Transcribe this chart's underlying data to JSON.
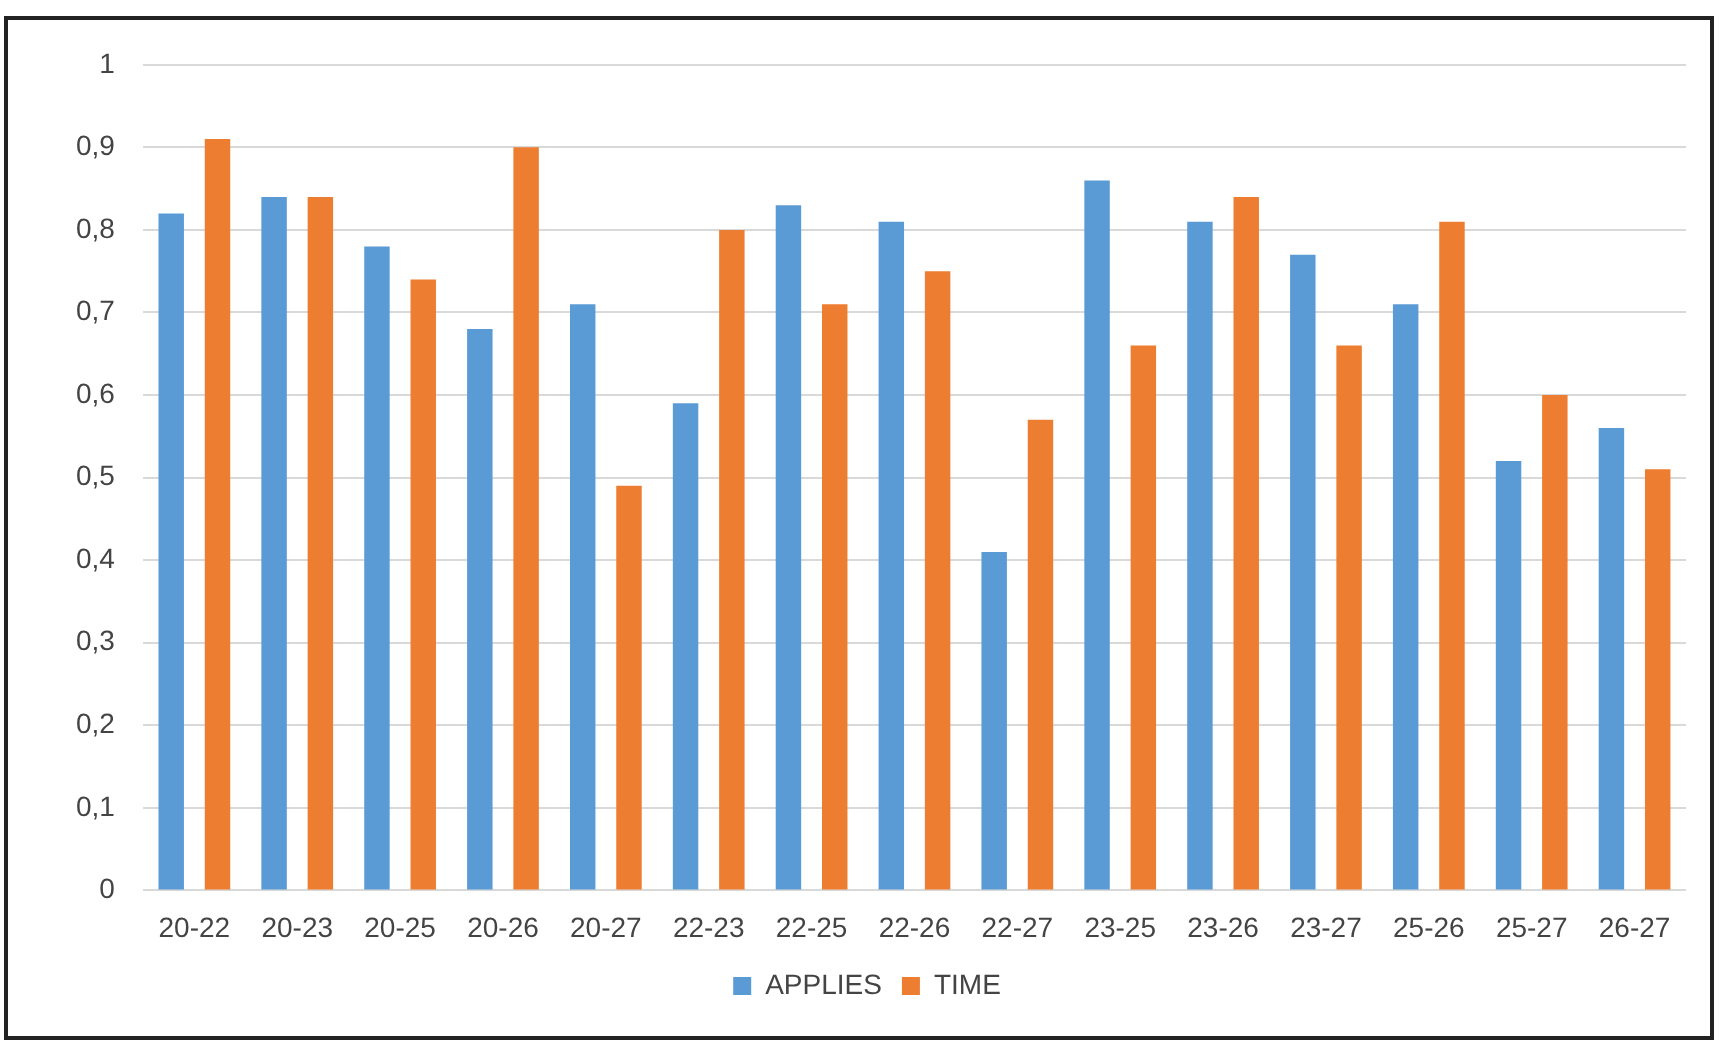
{
  "chart_data": {
    "type": "bar",
    "categories": [
      "20-22",
      "20-23",
      "20-25",
      "20-26",
      "20-27",
      "22-23",
      "22-25",
      "22-26",
      "22-27",
      "23-25",
      "23-26",
      "23-27",
      "25-26",
      "25-27",
      "26-27"
    ],
    "series": [
      {
        "name": "APPLIES",
        "color": "#5b9bd5",
        "values": [
          0.82,
          0.84,
          0.78,
          0.68,
          0.71,
          0.59,
          0.83,
          0.81,
          0.41,
          0.86,
          0.81,
          0.77,
          0.71,
          0.52,
          0.56
        ]
      },
      {
        "name": "TIME",
        "color": "#ed7d31",
        "values": [
          0.91,
          0.84,
          0.74,
          0.9,
          0.49,
          0.8,
          0.71,
          0.75,
          0.57,
          0.66,
          0.84,
          0.66,
          0.81,
          0.6,
          0.51
        ]
      }
    ],
    "ylim": [
      0,
      1
    ],
    "yticks": [
      0,
      {
        "value": 0.1,
        "label": "0,1"
      },
      {
        "value": 0.2,
        "label": "0,2"
      },
      {
        "value": 0.3,
        "label": "0,3"
      },
      {
        "value": 0.4,
        "label": "0,4"
      },
      {
        "value": 0.5,
        "label": "0,5"
      },
      {
        "value": 0.6,
        "label": "0,6"
      },
      {
        "value": 0.7,
        "label": "0,7"
      },
      {
        "value": 0.8,
        "label": "0,8"
      },
      {
        "value": 0.9,
        "label": "0,9"
      },
      1
    ],
    "grid": "y",
    "legend": "bottom"
  }
}
